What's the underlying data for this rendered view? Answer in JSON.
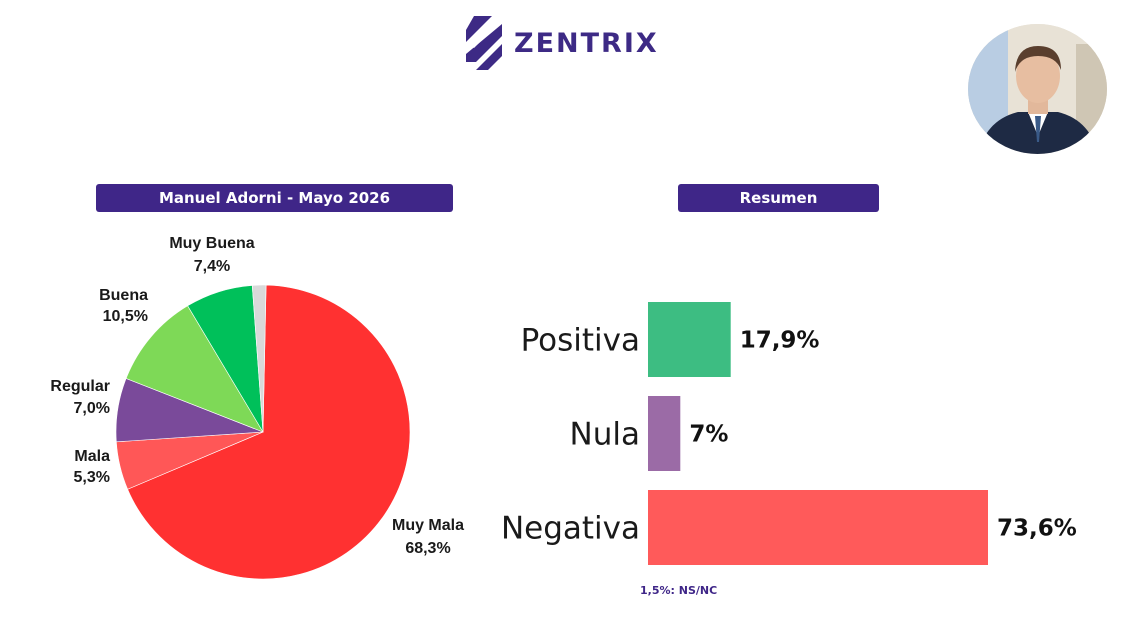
{
  "brand": {
    "name": "ZENTRIX"
  },
  "colors": {
    "brand": "#3f2688",
    "muy_buena": "#00c05a",
    "buena": "#7ed957",
    "regular": "#7a4a9a",
    "mala": "#ff5757",
    "muy_mala": "#ff3131",
    "ns_nc": "#d9d9d9",
    "positiva": "#3dbd82",
    "nula": "#9b6ba6",
    "negativa": "#ff5a5a"
  },
  "chart_data": [
    {
      "type": "pie",
      "title": "Manuel Adorni - Mayo 2026",
      "slices": [
        {
          "label": "Muy Mala",
          "value": 68.3,
          "display": "68,3%",
          "color": "#ff3131"
        },
        {
          "label": "Mala",
          "value": 5.3,
          "display": "5,3%",
          "color": "#ff5757"
        },
        {
          "label": "Regular",
          "value": 7.0,
          "display": "7,0%",
          "color": "#7a4a9a"
        },
        {
          "label": "Buena",
          "value": 10.5,
          "display": "10,5%",
          "color": "#7ed957"
        },
        {
          "label": "Muy Buena",
          "value": 7.4,
          "display": "7,4%",
          "color": "#00c05a"
        },
        {
          "label": "",
          "value": 1.5,
          "display": "",
          "color": "#d9d9d9"
        }
      ]
    },
    {
      "type": "bar",
      "orientation": "horizontal",
      "title": "Resumen",
      "categories": [
        "Positiva",
        "Nula",
        "Negativa"
      ],
      "values": [
        17.9,
        7,
        73.6
      ],
      "display": [
        "17,9%",
        "7%",
        "73,6%"
      ],
      "colors": [
        "#3dbd82",
        "#9b6ba6",
        "#ff5a5a"
      ],
      "note": "1,5%: NS/NC"
    }
  ]
}
